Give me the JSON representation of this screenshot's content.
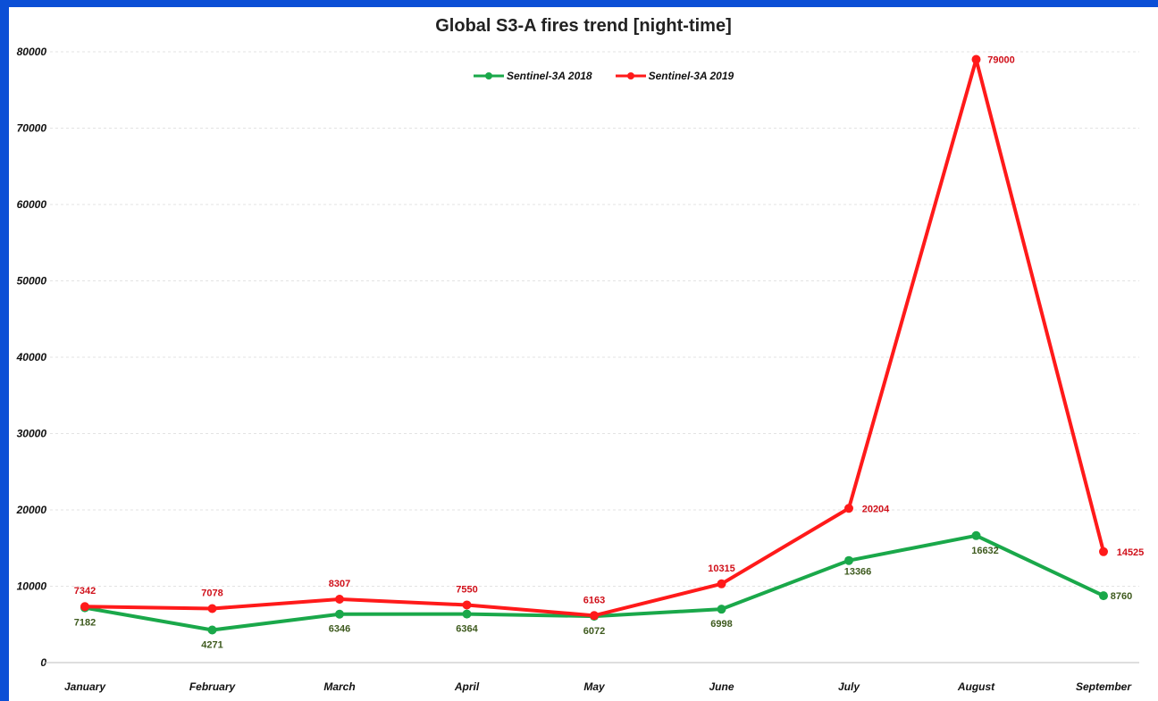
{
  "chart_data": {
    "type": "line",
    "title": "Global S3-A fires trend  [night-time]",
    "categories": [
      "January",
      "February",
      "March",
      "April",
      "May",
      "June",
      "July",
      "August",
      "September"
    ],
    "series": [
      {
        "name": "Sentinel-3A 2018",
        "color": "#1aa84a",
        "label_color": "#3e5a1e",
        "values": [
          7182,
          4271,
          6346,
          6364,
          6072,
          6998,
          13366,
          16632,
          8760
        ]
      },
      {
        "name": "Sentinel-3A 2019",
        "color": "#ff1a1a",
        "label_color": "#d0101a",
        "values": [
          7342,
          7078,
          8307,
          7550,
          6163,
          10315,
          20204,
          79000,
          14525
        ]
      }
    ],
    "ylim": [
      0,
      80000
    ],
    "yticks": [
      "0",
      "10000",
      "20000",
      "30000",
      "40000",
      "50000",
      "60000",
      "70000",
      "80000"
    ],
    "grid": true,
    "legend_position": "top-center"
  },
  "colors": {
    "background": "#0b4fd6",
    "plot_background": "#ffffff"
  }
}
